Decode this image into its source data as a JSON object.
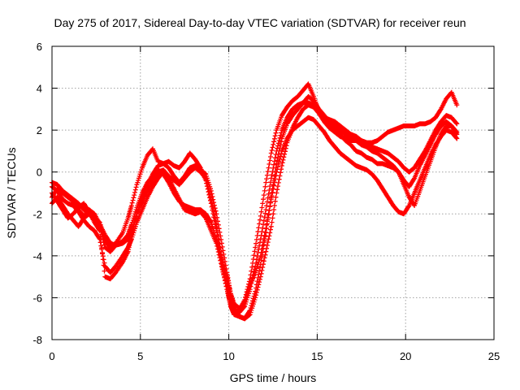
{
  "chart_data": {
    "type": "scatter",
    "title": "Day 275 of 2017, Sidereal Day-to-day VTEC variation (SDTVAR) for receiver reun",
    "xlabel": "GPS time / hours",
    "ylabel": "SDTVAR / TECUs",
    "xlim": [
      0,
      25
    ],
    "ylim": [
      -8,
      6
    ],
    "xticks": [
      0,
      5,
      10,
      15,
      20,
      25
    ],
    "yticks": [
      -8,
      -6,
      -4,
      -2,
      0,
      2,
      4,
      6
    ],
    "grid": true,
    "marker": "+",
    "series": [
      {
        "name": "SDTVAR",
        "color": "#ff0000",
        "tracks": [
          {
            "x": [
              0,
              0.3,
              0.6,
              0.9,
              1.2,
              1.5,
              1.8,
              2.1,
              2.4,
              2.7,
              3.0,
              3.3,
              3.6,
              4.0,
              4.3,
              4.5,
              4.8,
              5.1,
              5.4,
              5.7,
              6.0,
              6.3,
              6.6,
              6.9,
              7.2,
              7.5,
              7.8,
              8.1,
              8.4,
              8.7,
              9.0,
              9.3,
              9.6,
              9.9,
              10.1,
              10.3,
              10.6,
              10.9,
              11.2,
              11.5,
              11.8,
              12.1,
              12.4,
              12.7,
              13.0,
              13.3,
              13.6,
              13.9,
              14.2,
              14.5,
              14.8,
              15.1,
              15.4,
              15.7,
              16.0,
              16.3,
              16.6,
              16.9,
              17.2,
              17.5,
              17.8,
              18.1,
              18.4,
              18.7,
              19.0,
              19.3,
              19.6,
              19.9,
              20.2,
              20.5,
              20.8,
              21.1,
              21.4,
              21.7,
              22.0,
              22.3,
              22.6,
              22.9
            ],
            "y": [
              -1.2,
              -0.8,
              -1.0,
              -1.2,
              -1.4,
              -1.8,
              -2.1,
              -1.8,
              -2.0,
              -2.5,
              -3.0,
              -3.4,
              -3.5,
              -3.4,
              -3.2,
              -2.8,
              -2.0,
              -1.4,
              -0.9,
              -0.4,
              0.0,
              0.1,
              -0.2,
              -0.4,
              -0.6,
              -0.3,
              0.0,
              0.2,
              0.0,
              -0.3,
              -1.3,
              -2.5,
              -4.0,
              -5.3,
              -6.2,
              -6.6,
              -6.7,
              -6.4,
              -5.6,
              -4.5,
              -3.2,
              -1.8,
              -0.3,
              1.0,
              2.0,
              2.6,
              3.0,
              3.2,
              3.3,
              3.3,
              3.2,
              2.8,
              2.4,
              2.1,
              1.9,
              1.7,
              1.6,
              1.5,
              1.5,
              1.4,
              1.3,
              1.2,
              1.1,
              1.0,
              0.9,
              0.7,
              0.5,
              0.2,
              0.0,
              0.2,
              0.6,
              1.0,
              1.5,
              2.0,
              2.4,
              2.7,
              2.6,
              2.3
            ]
          },
          {
            "x": [
              0,
              0.3,
              0.6,
              0.9,
              1.2,
              1.5,
              1.8,
              2.1,
              2.4,
              2.7,
              3.0,
              3.3,
              3.6,
              4.0,
              4.3,
              4.5,
              4.8,
              5.1,
              5.4,
              5.7,
              6.0,
              6.3,
              6.6,
              6.9,
              7.2,
              7.5,
              7.8,
              8.1,
              8.4,
              8.7,
              9.0,
              9.3,
              9.6,
              9.9,
              10.1,
              10.3,
              10.6,
              10.9,
              11.2,
              11.5,
              11.8,
              12.1,
              12.4,
              12.7,
              13.0,
              13.3,
              13.6,
              13.9,
              14.2,
              14.5,
              14.8,
              15.1,
              15.4,
              15.7,
              16.0,
              16.3,
              16.6,
              16.9,
              17.2,
              17.5,
              17.8,
              18.1,
              18.4,
              18.7,
              19.0,
              19.3,
              19.6,
              19.9,
              20.2,
              20.5,
              20.8,
              21.1,
              21.4,
              21.7,
              22.0,
              22.3,
              22.6,
              22.9
            ],
            "y": [
              -0.7,
              -0.9,
              -1.3,
              -1.5,
              -1.6,
              -1.9,
              -2.3,
              -2.6,
              -2.8,
              -3.2,
              -4.5,
              -4.8,
              -4.5,
              -4.0,
              -3.6,
              -3.2,
              -2.4,
              -1.8,
              -1.2,
              -0.7,
              -0.3,
              0.0,
              -0.3,
              -0.8,
              -1.3,
              -1.8,
              -1.9,
              -2.0,
              -1.9,
              -2.2,
              -2.8,
              -3.4,
              -4.5,
              -5.6,
              -6.4,
              -6.8,
              -6.9,
              -7.0,
              -6.8,
              -6.0,
              -5.0,
              -3.8,
              -2.6,
              -1.0,
              0.3,
              1.4,
              2.1,
              2.6,
              3.0,
              3.2,
              3.1,
              2.8,
              2.5,
              2.2,
              2.0,
              1.8,
              1.5,
              1.3,
              1.0,
              0.9,
              0.7,
              0.6,
              0.4,
              0.4,
              0.3,
              0.2,
              0.0,
              -0.4,
              -0.7,
              -0.3,
              0.3,
              0.8,
              1.3,
              1.8,
              2.2,
              2.4,
              2.2,
              1.8
            ]
          },
          {
            "x": [
              0,
              0.3,
              0.6,
              0.9,
              1.2,
              1.5,
              1.8,
              2.1,
              2.4,
              2.7,
              3.0,
              3.3,
              3.6,
              4.0,
              4.3,
              4.5,
              4.8,
              5.1,
              5.4,
              5.7,
              6.0,
              6.3,
              6.6,
              6.9,
              7.2,
              7.5,
              7.8,
              8.1,
              8.4,
              8.7,
              9.0,
              9.3,
              9.6,
              9.9,
              10.1,
              10.3,
              10.6,
              10.9,
              11.2,
              11.5,
              11.8,
              12.1,
              12.4,
              12.7,
              13.0,
              13.3,
              13.6,
              13.9,
              14.2,
              14.5,
              14.8,
              15.1,
              15.4,
              15.7,
              16.0,
              16.3,
              16.6,
              16.9,
              17.2,
              17.5,
              17.8,
              18.1,
              18.4,
              18.7,
              19.0,
              19.3,
              19.6,
              19.9,
              20.2,
              20.5,
              20.8,
              21.1,
              21.4,
              21.7,
              22.0,
              22.3,
              22.6,
              22.9
            ],
            "y": [
              -1.5,
              -1.2,
              -1.6,
              -2.0,
              -2.3,
              -2.6,
              -2.2,
              -2.0,
              -2.3,
              -2.6,
              -3.6,
              -3.8,
              -3.5,
              -3.3,
              -3.0,
              -2.5,
              -1.7,
              -1.0,
              -0.5,
              -0.2,
              0.1,
              -0.1,
              -0.5,
              -1.0,
              -1.4,
              -1.6,
              -1.7,
              -1.8,
              -1.8,
              -2.0,
              -2.4,
              -3.2,
              -4.2,
              -5.0,
              -5.8,
              -6.3,
              -6.5,
              -6.2,
              -5.4,
              -4.8,
              -4.0,
              -2.7,
              -1.3,
              0.0,
              1.0,
              1.6,
              2.0,
              2.2,
              2.4,
              2.6,
              2.5,
              2.2,
              1.9,
              1.5,
              1.2,
              0.9,
              0.7,
              0.5,
              0.3,
              0.2,
              0.1,
              -0.1,
              -0.4,
              -0.8,
              -1.2,
              -1.6,
              -1.9,
              -2.0,
              -1.6,
              -1.0,
              -0.4,
              0.2,
              0.8,
              1.3,
              1.7,
              2.0,
              1.9,
              1.6
            ]
          },
          {
            "x": [
              0,
              0.3,
              0.6,
              0.9,
              1.2,
              1.5,
              1.8,
              2.1,
              2.4,
              2.7,
              3.0,
              3.3,
              3.6,
              4.0,
              4.3,
              4.5,
              4.8,
              5.1,
              5.4,
              5.7,
              6.0,
              6.3,
              6.6,
              6.9,
              7.2,
              7.5,
              7.8,
              8.1,
              8.4,
              8.7,
              9.0,
              9.3,
              9.6,
              9.9,
              10.1,
              10.3,
              10.6,
              10.9,
              11.2,
              11.5,
              11.8,
              12.1,
              12.4,
              12.7,
              13.0,
              13.3,
              13.6,
              13.9,
              14.2,
              14.5,
              14.8,
              15.1,
              15.4,
              15.7,
              16.0,
              16.3,
              16.6,
              16.9,
              17.2,
              17.5,
              17.8,
              18.1,
              18.4,
              18.7,
              19.0,
              19.3,
              19.6,
              19.9,
              20.2,
              20.5,
              20.8,
              21.1,
              21.4,
              21.7,
              22.0,
              22.3,
              22.6,
              22.9
            ],
            "y": [
              -1.0,
              -1.4,
              -1.8,
              -2.2,
              -2.0,
              -1.7,
              -1.5,
              -1.9,
              -2.4,
              -2.8,
              -5.0,
              -5.1,
              -4.8,
              -4.3,
              -3.8,
              -3.0,
              -2.0,
              -1.2,
              -0.6,
              -0.1,
              0.3,
              0.4,
              0.2,
              -0.2,
              -0.5,
              -0.2,
              0.2,
              0.3,
              0.1,
              -0.1,
              -0.9,
              -2.0,
              -3.4,
              -4.8,
              -5.8,
              -6.5,
              -6.9,
              -7.0,
              -6.6,
              -5.7,
              -4.4,
              -2.9,
              -1.2,
              0.4,
              1.6,
              2.3,
              2.7,
              3.0,
              3.3,
              3.6,
              3.4,
              3.0,
              2.7,
              2.4,
              2.2,
              2.0,
              1.8,
              1.6,
              1.5,
              1.3,
              1.2,
              1.0,
              0.9,
              0.7,
              0.5,
              0.3,
              0.0,
              -0.6,
              -1.2,
              -1.6,
              -0.9,
              -0.2,
              0.5,
              1.2,
              1.8,
              2.2,
              2.2,
              1.9
            ]
          },
          {
            "x": [
              0,
              0.3,
              0.6,
              0.9,
              1.2,
              1.5,
              1.8,
              2.1,
              2.4,
              2.7,
              3.0,
              3.3,
              3.6,
              4.0,
              4.3,
              4.5,
              4.8,
              5.1,
              5.4,
              5.7,
              6.0,
              6.3,
              6.6,
              6.9,
              7.2,
              7.5,
              7.8,
              8.1,
              8.4,
              8.7,
              9.0,
              9.3,
              9.6,
              9.9,
              10.1,
              10.3,
              10.6,
              10.9,
              11.2,
              11.5,
              11.8,
              12.1,
              12.4,
              12.7,
              13.0,
              13.3,
              13.6,
              13.9,
              14.2,
              14.5,
              14.8,
              15.1,
              15.4,
              15.7,
              16.0,
              16.3,
              16.6,
              16.9,
              17.2,
              17.5,
              17.8,
              18.1,
              18.4,
              18.7,
              19.0,
              19.3,
              19.6,
              19.9,
              20.2,
              20.5,
              20.8,
              21.1,
              21.4,
              21.7,
              22.0,
              22.3,
              22.6,
              22.9
            ],
            "y": [
              -0.5,
              -0.6,
              -0.9,
              -1.1,
              -1.3,
              -1.5,
              -1.8,
              -2.0,
              -2.2,
              -2.4,
              -3.3,
              -3.6,
              -3.4,
              -2.9,
              -2.2,
              -1.6,
              -0.6,
              0.2,
              0.8,
              1.1,
              0.5,
              0.4,
              0.5,
              0.3,
              0.2,
              0.5,
              0.9,
              0.6,
              0.2,
              -0.4,
              -1.5,
              -2.8,
              -4.4,
              -5.6,
              -6.3,
              -6.7,
              -6.6,
              -6.1,
              -5.1,
              -3.6,
              -2.1,
              -0.5,
              0.9,
              2.0,
              2.7,
              3.1,
              3.4,
              3.6,
              3.9,
              4.2,
              3.6,
              2.9,
              2.6,
              2.5,
              2.4,
              2.2,
              2.0,
              1.8,
              1.7,
              1.5,
              1.4,
              1.4,
              1.5,
              1.7,
              1.9,
              2.0,
              2.1,
              2.2,
              2.2,
              2.2,
              2.3,
              2.3,
              2.4,
              2.6,
              3.0,
              3.5,
              3.8,
              3.2
            ]
          }
        ]
      }
    ]
  }
}
